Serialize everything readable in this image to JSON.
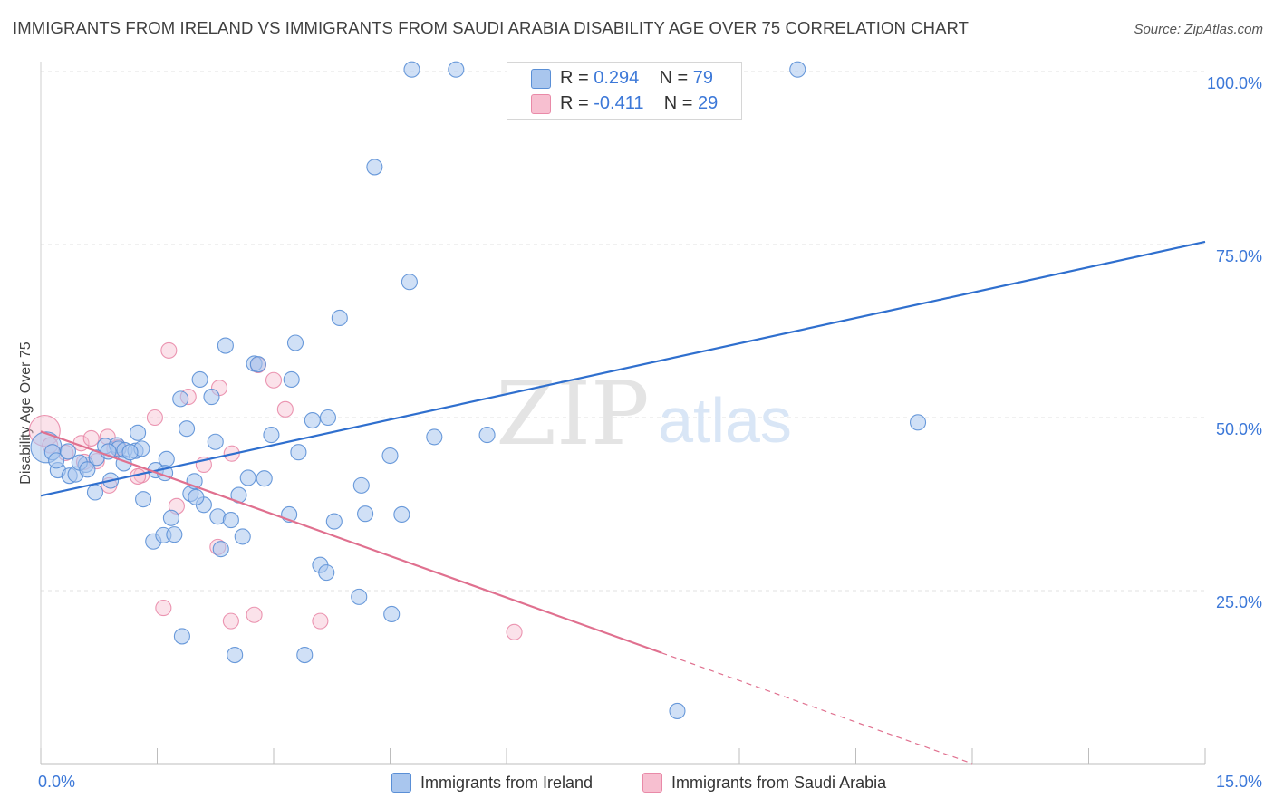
{
  "header": {
    "title": "IMMIGRANTS FROM IRELAND VS IMMIGRANTS FROM SAUDI ARABIA DISABILITY AGE OVER 75 CORRELATION CHART",
    "source": "Source: ZipAtlas.com"
  },
  "watermark": {
    "zip": "ZIP",
    "atlas": "atlas"
  },
  "legend": {
    "r_label": "R =",
    "n_label": "N =",
    "series": [
      {
        "name": "Immigrants from Ireland",
        "r": "0.294",
        "n": "79"
      },
      {
        "name": "Immigrants from Saudi Arabia",
        "r": "-0.411",
        "n": "29"
      }
    ]
  },
  "colors": {
    "ireland_fill": "#a9c6ee",
    "ireland_stroke": "#5a8fd6",
    "ireland_line": "#2f6fce",
    "saudi_fill": "#f7bfd0",
    "saudi_stroke": "#e98aa8",
    "saudi_line": "#e0708f",
    "grid": "#e2e2e2",
    "tick_label": "#3c78d8"
  },
  "chart_data": {
    "type": "scatter",
    "title": "IMMIGRANTS FROM IRELAND VS IMMIGRANTS FROM SAUDI ARABIA DISABILITY AGE OVER 75 CORRELATION CHART",
    "xlabel": "",
    "ylabel": "Disability Age Over 75",
    "xlim": [
      0,
      15
    ],
    "ylim": [
      0,
      100
    ],
    "x_tick_labels": [
      {
        "value": 0,
        "label": "0.0%"
      },
      {
        "value": 15,
        "label": "15.0%"
      }
    ],
    "y_ticks": [
      {
        "value": 25,
        "label": "25.0%"
      },
      {
        "value": 50,
        "label": "50.0%"
      },
      {
        "value": 75,
        "label": "75.0%"
      },
      {
        "value": 100,
        "label": "100.0%"
      }
    ],
    "grid": true,
    "legend_position": "top-center",
    "series": [
      {
        "name": "Immigrants from Ireland",
        "r": 0.294,
        "n": 79,
        "trend": {
          "x": [
            0,
            15
          ],
          "y": [
            38.7,
            75.4
          ]
        },
        "points": [
          {
            "x": 0.07,
            "y": 45.7,
            "big": true
          },
          {
            "x": 0.15,
            "y": 45.0
          },
          {
            "x": 0.22,
            "y": 42.4
          },
          {
            "x": 0.2,
            "y": 43.8
          },
          {
            "x": 0.35,
            "y": 45.1
          },
          {
            "x": 0.37,
            "y": 41.6
          },
          {
            "x": 0.45,
            "y": 41.8
          },
          {
            "x": 0.58,
            "y": 43.2
          },
          {
            "x": 0.5,
            "y": 43.5
          },
          {
            "x": 0.72,
            "y": 44.2
          },
          {
            "x": 0.83,
            "y": 45.9
          },
          {
            "x": 0.7,
            "y": 39.2
          },
          {
            "x": 0.98,
            "y": 46.0
          },
          {
            "x": 1.0,
            "y": 45.5
          },
          {
            "x": 1.08,
            "y": 45.3
          },
          {
            "x": 0.87,
            "y": 45.1
          },
          {
            "x": 1.22,
            "y": 45.2
          },
          {
            "x": 1.07,
            "y": 43.4
          },
          {
            "x": 0.9,
            "y": 40.9
          },
          {
            "x": 1.25,
            "y": 47.8
          },
          {
            "x": 1.48,
            "y": 42.4
          },
          {
            "x": 1.62,
            "y": 44.0
          },
          {
            "x": 1.32,
            "y": 38.2
          },
          {
            "x": 1.45,
            "y": 32.1
          },
          {
            "x": 1.58,
            "y": 33.0
          },
          {
            "x": 1.68,
            "y": 35.5
          },
          {
            "x": 1.72,
            "y": 33.1
          },
          {
            "x": 1.8,
            "y": 52.7
          },
          {
            "x": 1.88,
            "y": 48.4
          },
          {
            "x": 1.93,
            "y": 39.0
          },
          {
            "x": 1.98,
            "y": 40.8
          },
          {
            "x": 2.05,
            "y": 55.5
          },
          {
            "x": 2.1,
            "y": 37.4
          },
          {
            "x": 2.2,
            "y": 53.0
          },
          {
            "x": 2.25,
            "y": 46.5
          },
          {
            "x": 2.28,
            "y": 35.7
          },
          {
            "x": 2.32,
            "y": 31.0
          },
          {
            "x": 2.38,
            "y": 60.4
          },
          {
            "x": 2.45,
            "y": 35.2
          },
          {
            "x": 2.55,
            "y": 38.8
          },
          {
            "x": 2.6,
            "y": 32.8
          },
          {
            "x": 2.67,
            "y": 41.3
          },
          {
            "x": 2.75,
            "y": 57.8
          },
          {
            "x": 2.8,
            "y": 57.7
          },
          {
            "x": 2.88,
            "y": 41.2
          },
          {
            "x": 2.97,
            "y": 47.5
          },
          {
            "x": 3.2,
            "y": 36.0
          },
          {
            "x": 3.23,
            "y": 55.5
          },
          {
            "x": 3.28,
            "y": 60.8
          },
          {
            "x": 3.32,
            "y": 45.0
          },
          {
            "x": 3.5,
            "y": 49.6
          },
          {
            "x": 3.6,
            "y": 28.7
          },
          {
            "x": 3.68,
            "y": 27.6
          },
          {
            "x": 3.7,
            "y": 50.0
          },
          {
            "x": 3.78,
            "y": 35.0
          },
          {
            "x": 3.85,
            "y": 64.4
          },
          {
            "x": 4.1,
            "y": 24.1
          },
          {
            "x": 4.13,
            "y": 40.2
          },
          {
            "x": 4.18,
            "y": 36.1
          },
          {
            "x": 4.5,
            "y": 44.5
          },
          {
            "x": 4.65,
            "y": 36.0
          },
          {
            "x": 4.75,
            "y": 69.6
          },
          {
            "x": 4.78,
            "y": 100.3
          },
          {
            "x": 4.52,
            "y": 21.6
          },
          {
            "x": 5.35,
            "y": 100.3
          },
          {
            "x": 5.07,
            "y": 47.2
          },
          {
            "x": 5.75,
            "y": 47.5
          },
          {
            "x": 4.3,
            "y": 86.2
          },
          {
            "x": 9.75,
            "y": 100.3
          },
          {
            "x": 11.3,
            "y": 49.3
          },
          {
            "x": 8.2,
            "y": 7.6
          },
          {
            "x": 1.82,
            "y": 18.4
          },
          {
            "x": 2.5,
            "y": 15.7
          },
          {
            "x": 3.4,
            "y": 15.7
          },
          {
            "x": 1.3,
            "y": 45.5
          },
          {
            "x": 1.6,
            "y": 42.0
          },
          {
            "x": 2.0,
            "y": 38.5
          },
          {
            "x": 0.6,
            "y": 42.5
          },
          {
            "x": 1.15,
            "y": 45.0
          }
        ]
      },
      {
        "name": "Immigrants from Saudi Arabia",
        "r": -0.411,
        "n": 29,
        "trend": {
          "x": [
            0,
            15
          ],
          "y": [
            48.0,
            -12.0
          ],
          "solid_until_x": 8.0
        },
        "points": [
          {
            "x": 0.05,
            "y": 48.1,
            "big": true
          },
          {
            "x": 0.12,
            "y": 46.0
          },
          {
            "x": 0.32,
            "y": 44.9
          },
          {
            "x": 0.52,
            "y": 46.3
          },
          {
            "x": 0.56,
            "y": 43.6
          },
          {
            "x": 0.65,
            "y": 47.0
          },
          {
            "x": 0.86,
            "y": 47.2
          },
          {
            "x": 0.88,
            "y": 40.2
          },
          {
            "x": 0.95,
            "y": 45.5
          },
          {
            "x": 1.0,
            "y": 45.7
          },
          {
            "x": 1.3,
            "y": 41.7
          },
          {
            "x": 1.47,
            "y": 50.0
          },
          {
            "x": 1.65,
            "y": 59.7
          },
          {
            "x": 1.75,
            "y": 37.2
          },
          {
            "x": 1.9,
            "y": 53.0
          },
          {
            "x": 2.1,
            "y": 43.2
          },
          {
            "x": 2.28,
            "y": 31.3
          },
          {
            "x": 2.3,
            "y": 54.3
          },
          {
            "x": 2.46,
            "y": 44.8
          },
          {
            "x": 2.75,
            "y": 21.5
          },
          {
            "x": 2.8,
            "y": 57.6
          },
          {
            "x": 3.0,
            "y": 55.4
          },
          {
            "x": 3.15,
            "y": 51.2
          },
          {
            "x": 3.6,
            "y": 20.6
          },
          {
            "x": 6.1,
            "y": 19.0
          },
          {
            "x": 1.58,
            "y": 22.5
          },
          {
            "x": 2.45,
            "y": 20.6
          },
          {
            "x": 1.25,
            "y": 41.5
          },
          {
            "x": 0.72,
            "y": 43.7
          }
        ]
      }
    ]
  }
}
